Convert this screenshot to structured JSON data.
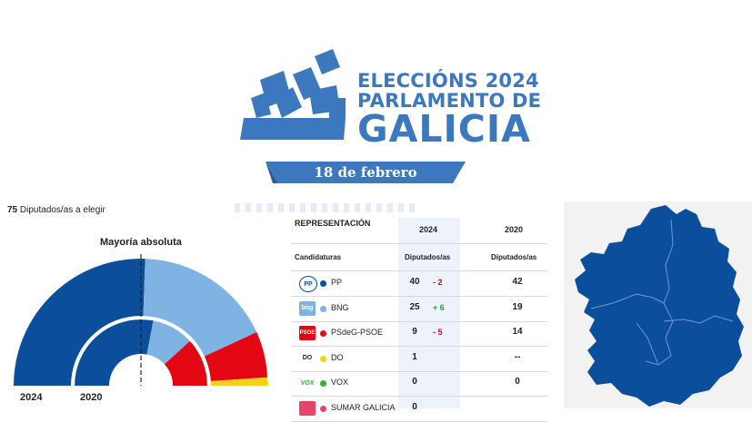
{
  "header": {
    "title_line1": "ELECCIÓNS 2024",
    "title_line2": "PARLAMENTO DE",
    "title_line3": "GALICIA",
    "date": "18 de febrero",
    "logo_icon": "ballot-box-icon"
  },
  "seats_note": {
    "count": "75",
    "label": "Diputados/as a elegir"
  },
  "hemicycle": {
    "majority_label": "Mayoría absoluta",
    "year_outer": "2024",
    "year_inner": "2020",
    "colors": {
      "pp": "#0b4f9c",
      "bng": "#7fb3e3",
      "psoe": "#e30613",
      "do": "#f7d117"
    }
  },
  "table": {
    "section_title": "REPRESENTACIÓN",
    "year_a": "2024",
    "year_b": "2020",
    "col_candidaturas": "Candidaturas",
    "col_diputados_a": "Diputados/as",
    "col_diputados_b": "Diputados/as",
    "rows": [
      {
        "logo": "PP",
        "name": "PP",
        "dot": "#0b4f9c",
        "v2024": "40",
        "diff": "- 2",
        "diff_color": "#d0021b",
        "v2020": "42"
      },
      {
        "logo": "bng",
        "name": "BNG",
        "dot": "#7fb3e3",
        "v2024": "25",
        "diff": "+ 6",
        "diff_color": "#2e9e3b",
        "v2020": "19"
      },
      {
        "logo": "PSOE",
        "name": "PSdeG-PSOE",
        "dot": "#e30613",
        "v2024": "9",
        "diff": "- 5",
        "diff_color": "#d0021b",
        "v2020": "14"
      },
      {
        "logo": "DO",
        "name": "DO",
        "dot": "#f7d117",
        "v2024": "1",
        "diff": "",
        "diff_color": "#222222",
        "v2020": "--"
      },
      {
        "logo": "VOX",
        "name": "VOX",
        "dot": "#2fb52f",
        "v2024": "0",
        "diff": "",
        "diff_color": "#222222",
        "v2020": "0"
      },
      {
        "logo": "",
        "name": "SUMAR GALICIA",
        "dot": "#e6446b",
        "v2024": "0",
        "diff": "",
        "diff_color": "#222222",
        "v2020": ""
      }
    ]
  },
  "map": {
    "fill": "#0b4f9c",
    "icon": "galicia-map-icon"
  }
}
